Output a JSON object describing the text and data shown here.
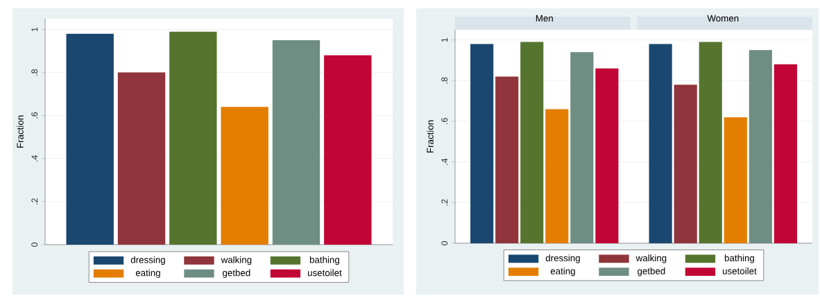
{
  "chart_data": [
    {
      "type": "bar",
      "categories": [
        null
      ],
      "ylabel": "Fraction",
      "ylim": [
        0,
        1.05
      ],
      "yticks": [
        0,
        {
          "value": 0.2,
          "label": ".2"
        },
        {
          "value": 0.4,
          "label": ".4"
        },
        {
          "value": 0.6,
          "label": ".6"
        },
        {
          "value": 0.8,
          "label": ".8"
        },
        1
      ],
      "grid": "y",
      "legend": "bottom",
      "series": [
        {
          "name": "dressing",
          "color": "#1a476f",
          "values": [
            0.98
          ]
        },
        {
          "name": "walking",
          "color": "#90353b",
          "values": [
            0.8
          ]
        },
        {
          "name": "bathing",
          "color": "#55752f",
          "values": [
            0.99
          ]
        },
        {
          "name": "eating",
          "color": "#e37e00",
          "values": [
            0.64
          ]
        },
        {
          "name": "getbed",
          "color": "#6e8e84",
          "values": [
            0.95
          ]
        },
        {
          "name": "usetoilet",
          "color": "#c10534",
          "values": [
            0.88
          ]
        }
      ]
    },
    {
      "type": "bar",
      "categories": [
        "Men",
        "Women"
      ],
      "ylabel": "Fraction",
      "ylim": [
        0,
        1.05
      ],
      "yticks": [
        0,
        {
          "value": 0.2,
          "label": ".2"
        },
        {
          "value": 0.4,
          "label": ".4"
        },
        {
          "value": 0.6,
          "label": ".6"
        },
        {
          "value": 0.8,
          "label": ".8"
        },
        1
      ],
      "grid": "y",
      "legend": "bottom",
      "series": [
        {
          "name": "dressing",
          "color": "#1a476f",
          "values": [
            0.98,
            0.98
          ]
        },
        {
          "name": "walking",
          "color": "#90353b",
          "values": [
            0.82,
            0.78
          ]
        },
        {
          "name": "bathing",
          "color": "#55752f",
          "values": [
            0.99,
            0.99
          ]
        },
        {
          "name": "eating",
          "color": "#e37e00",
          "values": [
            0.66,
            0.62
          ]
        },
        {
          "name": "getbed",
          "color": "#6e8e84",
          "values": [
            0.94,
            0.95
          ]
        },
        {
          "name": "usetoilet",
          "color": "#c10534",
          "values": [
            0.86,
            0.88
          ]
        }
      ]
    }
  ]
}
